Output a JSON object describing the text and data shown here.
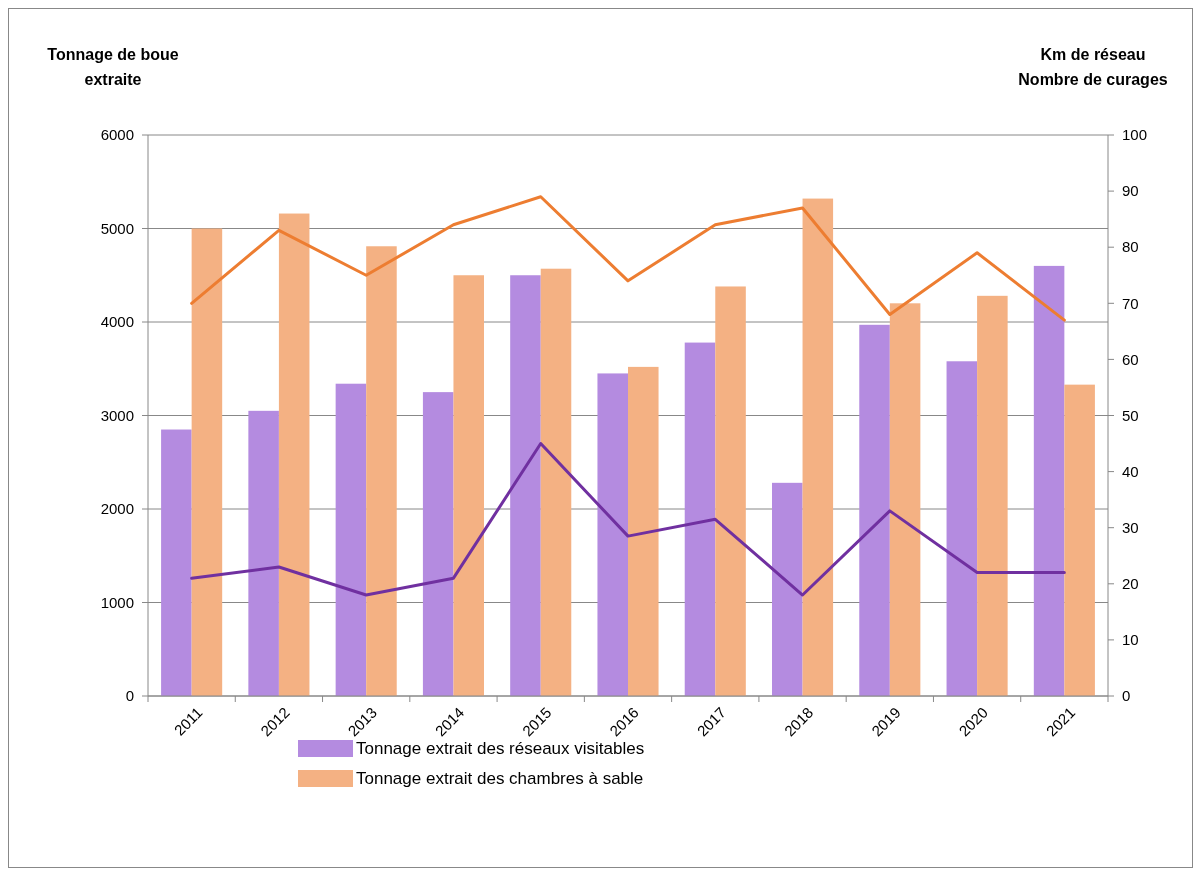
{
  "chart_data": {
    "type": "bar",
    "ylabel": "Tonnage de boue\nextraite",
    "y2label": "Km de réseau\nNombre de curages",
    "categories": [
      "2011",
      "2012",
      "2013",
      "2014",
      "2015",
      "2016",
      "2017",
      "2018",
      "2019",
      "2020",
      "2021"
    ],
    "series": [
      {
        "name": "Tonnage extrait des réseaux visitables",
        "color": "#b48be0",
        "values": [
          2850,
          3050,
          3340,
          3250,
          4500,
          3450,
          3780,
          2280,
          3970,
          3580,
          4600
        ]
      },
      {
        "name": "Tonnage extrait des chambres à sable",
        "color": "#f4b183",
        "values": [
          5000,
          5160,
          4810,
          4500,
          4570,
          3520,
          4380,
          5320,
          4200,
          4280,
          3330
        ]
      },
      {
        "type": "line",
        "axis": "y2",
        "color": "#ed7d31",
        "values": [
          70,
          83,
          75,
          84,
          89,
          74,
          84,
          87,
          68,
          79,
          67
        ]
      },
      {
        "type": "line",
        "axis": "y2",
        "color": "#7030a0",
        "values": [
          21,
          23,
          18,
          21,
          45,
          28.5,
          31.5,
          18,
          33,
          22,
          22
        ]
      }
    ],
    "ylim": [
      0,
      6000
    ],
    "yticks": [
      0,
      1000,
      2000,
      3000,
      4000,
      5000,
      6000
    ],
    "y2lim": [
      0,
      100
    ],
    "y2ticks": [
      0,
      10,
      20,
      30,
      40,
      50,
      60,
      70,
      80,
      90,
      100
    ],
    "grid": "y",
    "legend": "bottom",
    "marker": "none",
    "line_style": "solid"
  }
}
